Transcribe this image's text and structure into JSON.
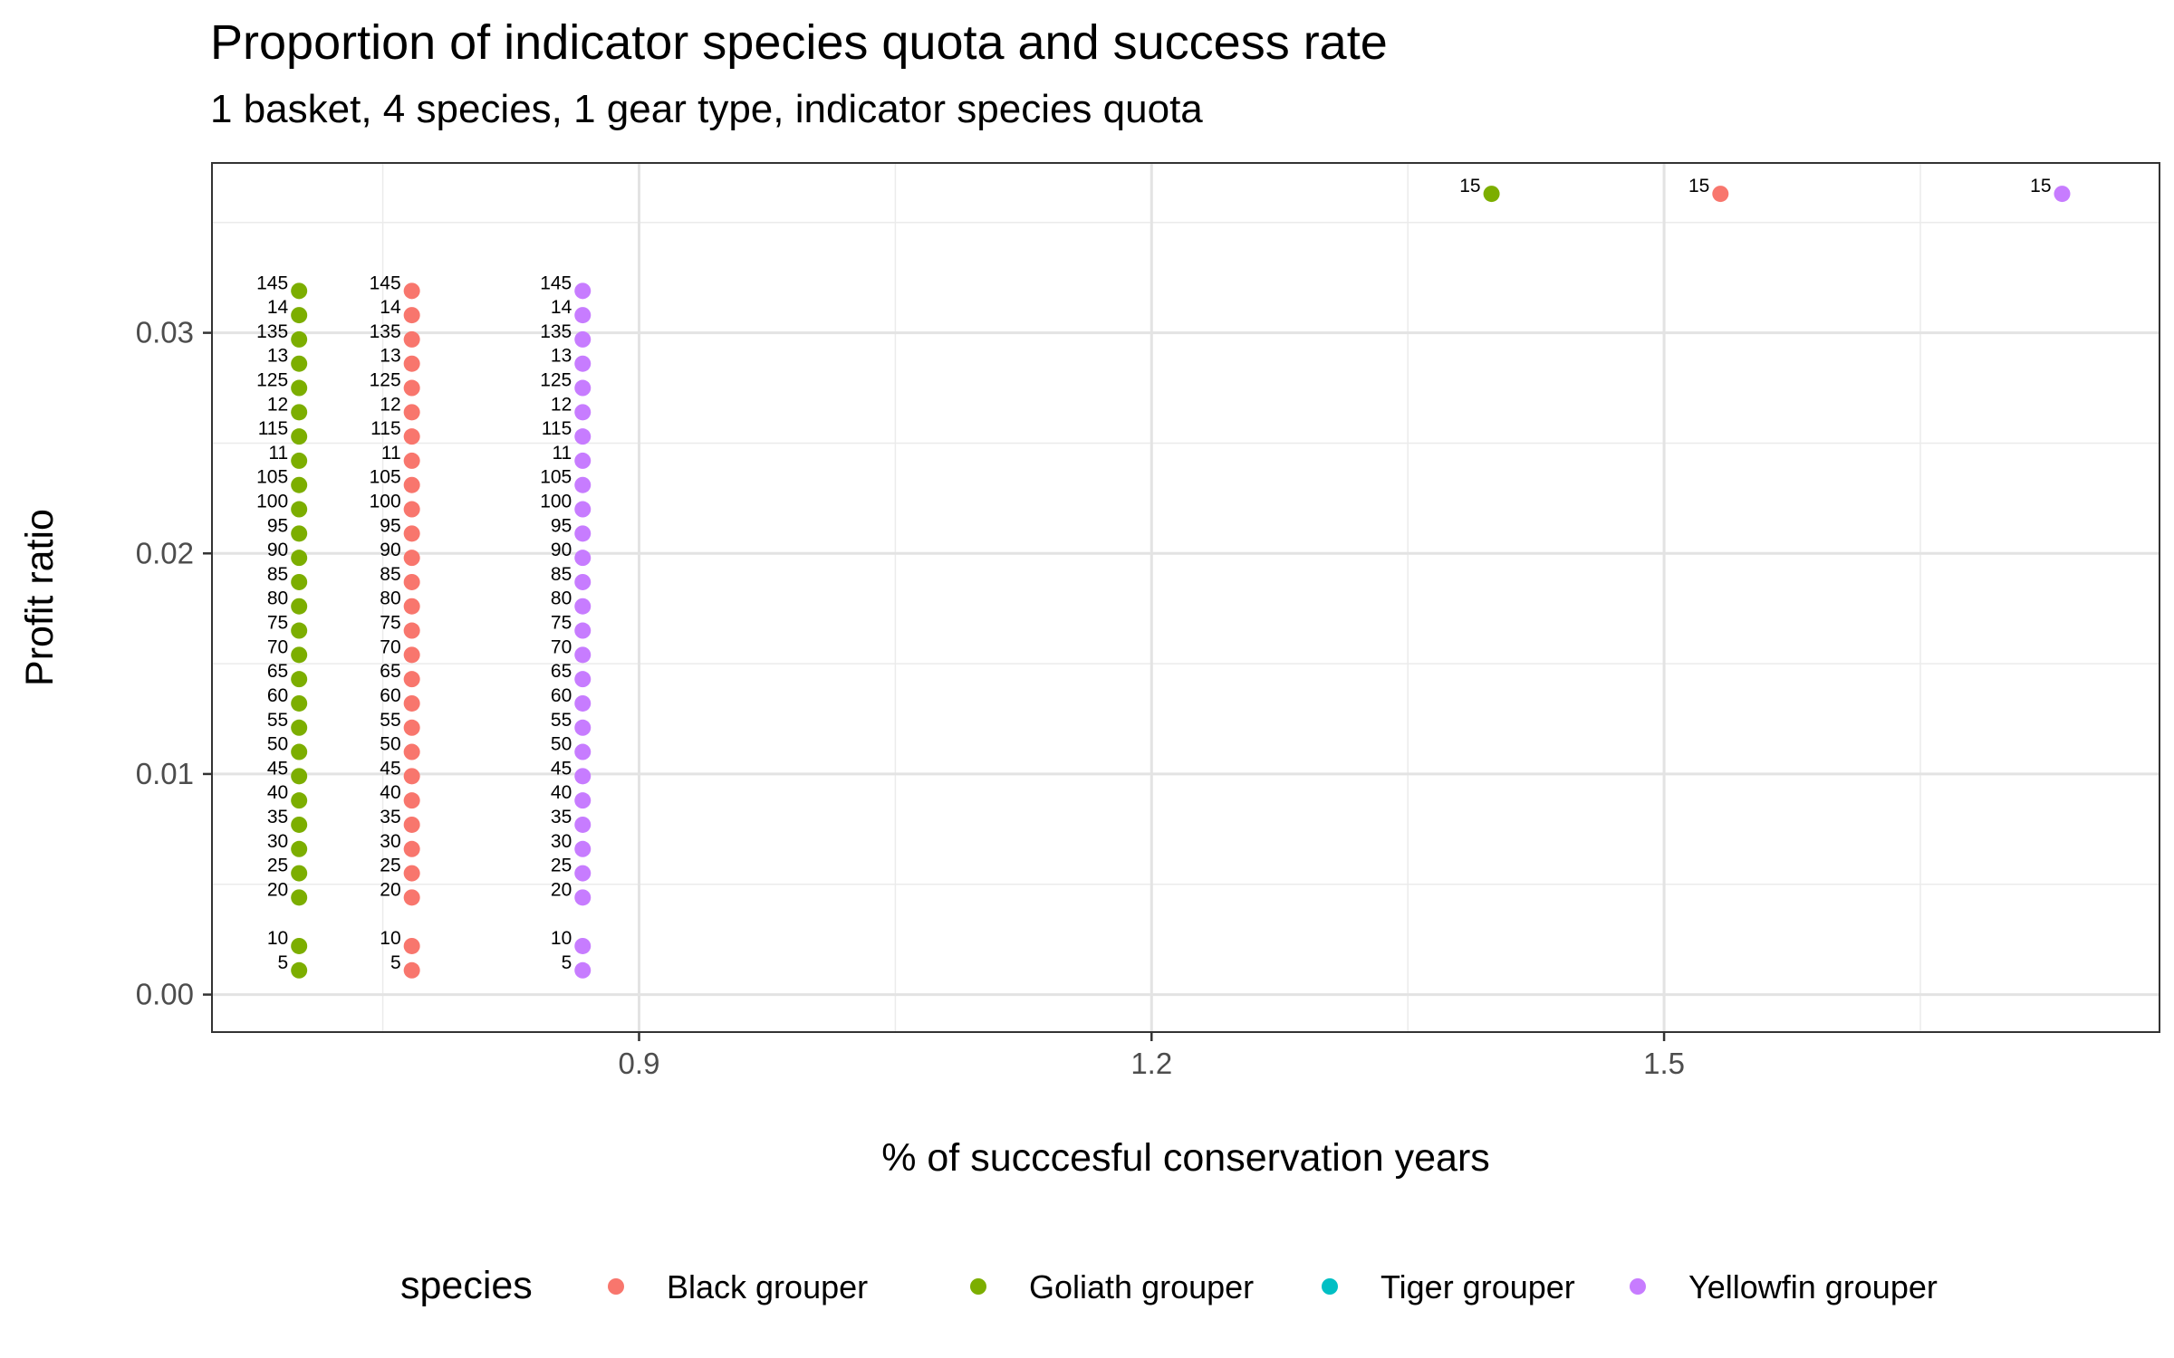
{
  "chart_data": {
    "type": "scatter",
    "title": "Proportion of indicator species quota and success rate",
    "subtitle": "1 basket, 4 species, 1 gear type, indicator species quota",
    "xlabel": "% of succcesful conservation years",
    "ylabel": "Profit ratio",
    "xlim": [
      0.65,
      1.79
    ],
    "ylim": [
      -0.0017,
      0.0377
    ],
    "x_ticks": [
      {
        "value": 0.9,
        "label": "0.9"
      },
      {
        "value": 1.2,
        "label": "1.2"
      },
      {
        "value": 1.5,
        "label": "1.5"
      }
    ],
    "y_ticks": [
      {
        "value": 0.0,
        "label": "0.00"
      },
      {
        "value": 0.01,
        "label": "0.01"
      },
      {
        "value": 0.02,
        "label": "0.02"
      },
      {
        "value": 0.03,
        "label": "0.03"
      }
    ],
    "x_minor": [
      0.75,
      1.05,
      1.35,
      1.65
    ],
    "y_minor": [
      0.005,
      0.015,
      0.025,
      0.035
    ],
    "grid": true,
    "legend": {
      "title": "species",
      "position": "bottom"
    },
    "series": [
      {
        "name": "Black grouper",
        "color": "#F8766D",
        "points": [
          {
            "x": 0.767,
            "y": 0.0011,
            "label": "5"
          },
          {
            "x": 0.767,
            "y": 0.0022,
            "label": "10"
          },
          {
            "x": 0.767,
            "y": 0.0044,
            "label": "20"
          },
          {
            "x": 0.767,
            "y": 0.0055,
            "label": "25"
          },
          {
            "x": 0.767,
            "y": 0.0066,
            "label": "30"
          },
          {
            "x": 0.767,
            "y": 0.0077,
            "label": "35"
          },
          {
            "x": 0.767,
            "y": 0.0088,
            "label": "40"
          },
          {
            "x": 0.767,
            "y": 0.0099,
            "label": "45"
          },
          {
            "x": 0.767,
            "y": 0.011,
            "label": "50"
          },
          {
            "x": 0.767,
            "y": 0.0121,
            "label": "55"
          },
          {
            "x": 0.767,
            "y": 0.0132,
            "label": "60"
          },
          {
            "x": 0.767,
            "y": 0.0143,
            "label": "65"
          },
          {
            "x": 0.767,
            "y": 0.0154,
            "label": "70"
          },
          {
            "x": 0.767,
            "y": 0.0165,
            "label": "75"
          },
          {
            "x": 0.767,
            "y": 0.0176,
            "label": "80"
          },
          {
            "x": 0.767,
            "y": 0.0187,
            "label": "85"
          },
          {
            "x": 0.767,
            "y": 0.0198,
            "label": "90"
          },
          {
            "x": 0.767,
            "y": 0.0209,
            "label": "95"
          },
          {
            "x": 0.767,
            "y": 0.022,
            "label": "100"
          },
          {
            "x": 0.767,
            "y": 0.0231,
            "label": "105"
          },
          {
            "x": 0.767,
            "y": 0.0242,
            "label": "11"
          },
          {
            "x": 0.767,
            "y": 0.0253,
            "label": "115"
          },
          {
            "x": 0.767,
            "y": 0.0264,
            "label": "12"
          },
          {
            "x": 0.767,
            "y": 0.0275,
            "label": "125"
          },
          {
            "x": 0.767,
            "y": 0.0286,
            "label": "13"
          },
          {
            "x": 0.767,
            "y": 0.0297,
            "label": "135"
          },
          {
            "x": 0.767,
            "y": 0.0308,
            "label": "14"
          },
          {
            "x": 0.767,
            "y": 0.0319,
            "label": "145"
          },
          {
            "x": 1.533,
            "y": 0.0363,
            "label": "15"
          }
        ]
      },
      {
        "name": "Goliath grouper",
        "color": "#7CAE00",
        "points": [
          {
            "x": 0.701,
            "y": 0.0011,
            "label": "5"
          },
          {
            "x": 0.701,
            "y": 0.0022,
            "label": "10"
          },
          {
            "x": 0.701,
            "y": 0.0044,
            "label": "20"
          },
          {
            "x": 0.701,
            "y": 0.0055,
            "label": "25"
          },
          {
            "x": 0.701,
            "y": 0.0066,
            "label": "30"
          },
          {
            "x": 0.701,
            "y": 0.0077,
            "label": "35"
          },
          {
            "x": 0.701,
            "y": 0.0088,
            "label": "40"
          },
          {
            "x": 0.701,
            "y": 0.0099,
            "label": "45"
          },
          {
            "x": 0.701,
            "y": 0.011,
            "label": "50"
          },
          {
            "x": 0.701,
            "y": 0.0121,
            "label": "55"
          },
          {
            "x": 0.701,
            "y": 0.0132,
            "label": "60"
          },
          {
            "x": 0.701,
            "y": 0.0143,
            "label": "65"
          },
          {
            "x": 0.701,
            "y": 0.0154,
            "label": "70"
          },
          {
            "x": 0.701,
            "y": 0.0165,
            "label": "75"
          },
          {
            "x": 0.701,
            "y": 0.0176,
            "label": "80"
          },
          {
            "x": 0.701,
            "y": 0.0187,
            "label": "85"
          },
          {
            "x": 0.701,
            "y": 0.0198,
            "label": "90"
          },
          {
            "x": 0.701,
            "y": 0.0209,
            "label": "95"
          },
          {
            "x": 0.701,
            "y": 0.022,
            "label": "100"
          },
          {
            "x": 0.701,
            "y": 0.0231,
            "label": "105"
          },
          {
            "x": 0.701,
            "y": 0.0242,
            "label": "11"
          },
          {
            "x": 0.701,
            "y": 0.0253,
            "label": "115"
          },
          {
            "x": 0.701,
            "y": 0.0264,
            "label": "12"
          },
          {
            "x": 0.701,
            "y": 0.0275,
            "label": "125"
          },
          {
            "x": 0.701,
            "y": 0.0286,
            "label": "13"
          },
          {
            "x": 0.701,
            "y": 0.0297,
            "label": "135"
          },
          {
            "x": 0.701,
            "y": 0.0308,
            "label": "14"
          },
          {
            "x": 0.701,
            "y": 0.0319,
            "label": "145"
          },
          {
            "x": 1.399,
            "y": 0.0363,
            "label": "15"
          }
        ]
      },
      {
        "name": "Tiger grouper",
        "color": "#00BFC4",
        "points": []
      },
      {
        "name": "Yellowfin grouper",
        "color": "#C77CFF",
        "points": [
          {
            "x": 0.867,
            "y": 0.0011,
            "label": "5"
          },
          {
            "x": 0.867,
            "y": 0.0022,
            "label": "10"
          },
          {
            "x": 0.867,
            "y": 0.0044,
            "label": "20"
          },
          {
            "x": 0.867,
            "y": 0.0055,
            "label": "25"
          },
          {
            "x": 0.867,
            "y": 0.0066,
            "label": "30"
          },
          {
            "x": 0.867,
            "y": 0.0077,
            "label": "35"
          },
          {
            "x": 0.867,
            "y": 0.0088,
            "label": "40"
          },
          {
            "x": 0.867,
            "y": 0.0099,
            "label": "45"
          },
          {
            "x": 0.867,
            "y": 0.011,
            "label": "50"
          },
          {
            "x": 0.867,
            "y": 0.0121,
            "label": "55"
          },
          {
            "x": 0.867,
            "y": 0.0132,
            "label": "60"
          },
          {
            "x": 0.867,
            "y": 0.0143,
            "label": "65"
          },
          {
            "x": 0.867,
            "y": 0.0154,
            "label": "70"
          },
          {
            "x": 0.867,
            "y": 0.0165,
            "label": "75"
          },
          {
            "x": 0.867,
            "y": 0.0176,
            "label": "80"
          },
          {
            "x": 0.867,
            "y": 0.0187,
            "label": "85"
          },
          {
            "x": 0.867,
            "y": 0.0198,
            "label": "90"
          },
          {
            "x": 0.867,
            "y": 0.0209,
            "label": "95"
          },
          {
            "x": 0.867,
            "y": 0.022,
            "label": "100"
          },
          {
            "x": 0.867,
            "y": 0.0231,
            "label": "105"
          },
          {
            "x": 0.867,
            "y": 0.0242,
            "label": "11"
          },
          {
            "x": 0.867,
            "y": 0.0253,
            "label": "115"
          },
          {
            "x": 0.867,
            "y": 0.0264,
            "label": "12"
          },
          {
            "x": 0.867,
            "y": 0.0275,
            "label": "125"
          },
          {
            "x": 0.867,
            "y": 0.0286,
            "label": "13"
          },
          {
            "x": 0.867,
            "y": 0.0297,
            "label": "135"
          },
          {
            "x": 0.867,
            "y": 0.0308,
            "label": "14"
          },
          {
            "x": 0.867,
            "y": 0.0319,
            "label": "145"
          },
          {
            "x": 1.733,
            "y": 0.0363,
            "label": "15"
          }
        ]
      }
    ]
  }
}
